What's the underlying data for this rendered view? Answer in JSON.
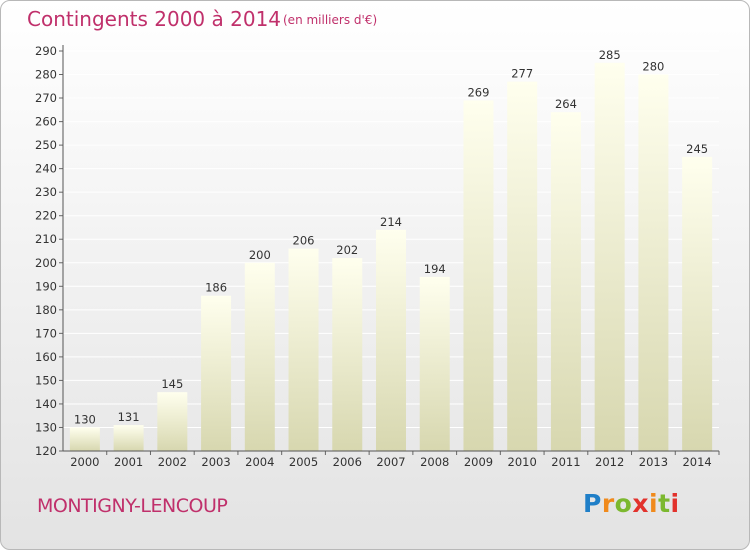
{
  "chart_data": {
    "type": "bar",
    "title": "Contingents 2000 à 2014",
    "subtitle": "(en milliers d'€)",
    "categories": [
      "2000",
      "2001",
      "2002",
      "2003",
      "2004",
      "2005",
      "2006",
      "2007",
      "2008",
      "2009",
      "2010",
      "2011",
      "2012",
      "2013",
      "2014"
    ],
    "values": [
      130,
      131,
      145,
      186,
      200,
      206,
      202,
      214,
      194,
      269,
      277,
      264,
      285,
      280,
      245
    ],
    "ylim": [
      120,
      290
    ],
    "yticks": [
      120,
      130,
      140,
      150,
      160,
      170,
      180,
      190,
      200,
      210,
      220,
      230,
      240,
      250,
      260,
      270,
      280,
      290
    ],
    "grid": true,
    "legend": "none",
    "xlabel": "",
    "ylabel": ""
  },
  "footer": {
    "commune": "MONTIGNY-LENCOUP",
    "logo": "Proxiti"
  },
  "colors": {
    "accent": "#c0306b",
    "bar_top": "#ffffee",
    "bar_bottom": "#d7d7af",
    "grid": "#ffffff"
  }
}
